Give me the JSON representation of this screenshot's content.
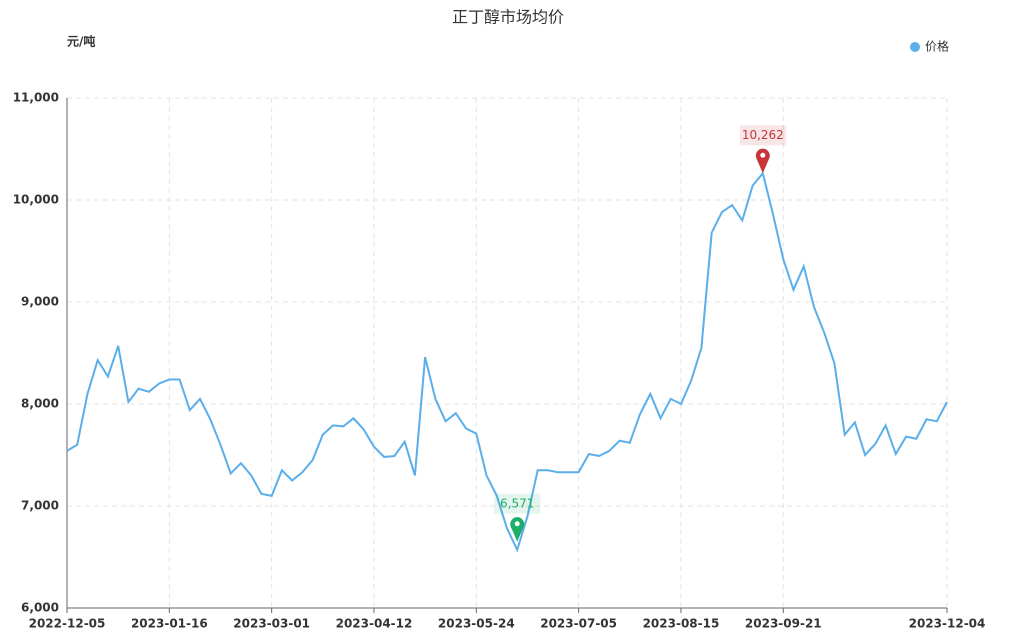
{
  "chart_data": {
    "type": "line",
    "title": "正丁醇市场均价",
    "y_label": "元/吨",
    "categories": [
      "2022-12-05",
      null,
      null,
      null,
      null,
      null,
      null,
      null,
      null,
      null,
      "2023-01-16",
      null,
      null,
      null,
      null,
      null,
      null,
      null,
      null,
      null,
      "2023-03-01",
      null,
      null,
      null,
      null,
      null,
      null,
      null,
      null,
      null,
      "2023-04-12",
      null,
      null,
      null,
      null,
      null,
      null,
      null,
      null,
      null,
      "2023-05-24",
      null,
      null,
      null,
      null,
      null,
      null,
      null,
      null,
      null,
      "2023-07-05",
      null,
      null,
      null,
      null,
      null,
      null,
      null,
      null,
      null,
      "2023-08-15",
      null,
      null,
      null,
      null,
      null,
      null,
      null,
      null,
      null,
      "2023-09-21",
      null,
      null,
      null,
      null,
      null,
      null,
      null,
      null,
      null,
      null,
      null,
      null,
      null,
      null,
      null,
      "2023-12-04"
    ],
    "series": [
      {
        "name": "价格",
        "color": "#5aaeea",
        "values": [
          7540,
          7600,
          8100,
          8430,
          8270,
          8570,
          8020,
          8150,
          8120,
          8200,
          8240,
          8240,
          7940,
          8050,
          7850,
          7600,
          7320,
          7420,
          7300,
          7120,
          7100,
          7350,
          7250,
          7330,
          7450,
          7700,
          7790,
          7780,
          7860,
          7750,
          7580,
          7480,
          7490,
          7630,
          7300,
          8460,
          8050,
          7830,
          7910,
          7760,
          7710,
          7300,
          7100,
          6780,
          6571,
          6900,
          7350,
          7350,
          7330,
          7330,
          7330,
          7510,
          7490,
          7540,
          7640,
          7620,
          7900,
          8100,
          7860,
          8050,
          8000,
          8230,
          8550,
          9680,
          9880,
          9950,
          9800,
          10140,
          10262,
          9860,
          9420,
          9120,
          9350,
          8950,
          8700,
          8400,
          7700,
          7820,
          7500,
          7610,
          7790,
          7510,
          7680,
          7660,
          7850,
          7830,
          8020
        ],
        "value_labels": [
          null,
          null,
          null,
          null,
          null,
          null,
          null,
          null,
          null,
          null,
          null,
          null,
          null,
          null,
          null,
          null,
          null,
          null,
          null,
          null,
          null,
          null,
          null,
          null,
          null,
          null,
          null,
          null,
          null,
          null,
          null,
          null,
          null,
          null,
          null,
          null,
          null,
          null,
          null,
          null,
          null,
          null,
          null,
          null,
          "6,571",
          null,
          null,
          null,
          null,
          null,
          null,
          null,
          null,
          null,
          null,
          null,
          null,
          null,
          null,
          null,
          null,
          null,
          null,
          null,
          null,
          null,
          null,
          null,
          "10,262",
          null,
          null,
          null,
          null,
          null,
          null,
          null,
          null,
          null,
          null,
          null,
          null,
          null,
          null,
          null,
          null,
          null,
          null
        ]
      }
    ],
    "marker_colors": {
      "max": "#c8343a",
      "min": "#1fae6a"
    },
    "ylim": [
      6000,
      11000
    ],
    "yticks": [
      {
        "value": 6000,
        "label": "6,000"
      },
      {
        "value": 7000,
        "label": "7,000"
      },
      {
        "value": 8000,
        "label": "8,000"
      },
      {
        "value": 9000,
        "label": "9,000"
      },
      {
        "value": 10000,
        "label": "10,000"
      },
      {
        "value": 11000,
        "label": "11,000"
      }
    ],
    "grid": true,
    "legend": "top-right"
  }
}
